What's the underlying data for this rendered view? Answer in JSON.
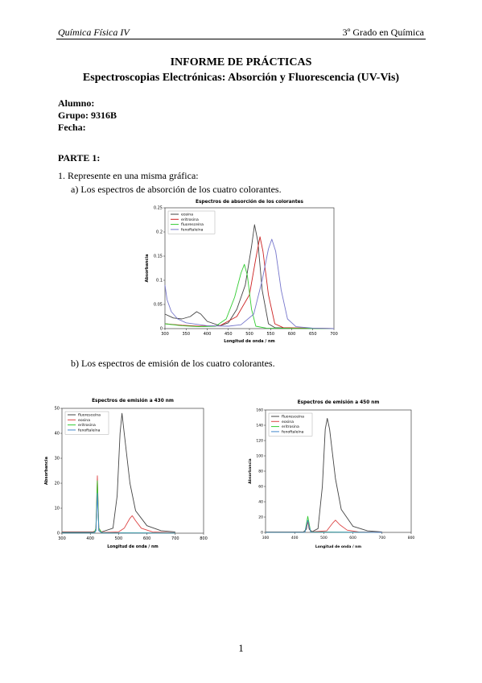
{
  "header": {
    "left": "Química Física IV",
    "right": "3º Grado en Química"
  },
  "title": {
    "line1": "INFORME DE PRÁCTICAS",
    "line2": "Espectroscopias Electrónicas: Absorción y Fluorescencia (UV-Vis)"
  },
  "meta": {
    "alumno": "Alumno:",
    "grupo": "Grupo: 9316B",
    "fecha": "Fecha:"
  },
  "section": "PARTE 1:",
  "q1": "1.  Represente en una misma gráfica:",
  "qa": "a)  Los espectros de absorción de los cuatro colorantes.",
  "qb": "b)  Los espectros de emisión de los cuatro colorantes.",
  "page_number": "1",
  "chart_data": [
    {
      "type": "line",
      "title": "Espectros de absorción de los colorantes",
      "xlabel": "Longitud de onda / nm",
      "ylabel": "Absorbancia",
      "xlim": [
        300,
        700
      ],
      "ylim": [
        0,
        0.25
      ],
      "xticks": [
        300,
        350,
        400,
        450,
        500,
        550,
        600,
        650,
        700
      ],
      "yticks": [
        0,
        0.05,
        0.1,
        0.15,
        0.2,
        0.25
      ],
      "legend": "top-left",
      "series": [
        {
          "name": "eosina",
          "color": "#444444",
          "points": [
            [
              300,
              0.03
            ],
            [
              320,
              0.022
            ],
            [
              340,
              0.02
            ],
            [
              360,
              0.025
            ],
            [
              375,
              0.035
            ],
            [
              385,
              0.03
            ],
            [
              400,
              0.015
            ],
            [
              430,
              0.006
            ],
            [
              450,
              0.012
            ],
            [
              470,
              0.04
            ],
            [
              490,
              0.09
            ],
            [
              505,
              0.17
            ],
            [
              512,
              0.215
            ],
            [
              520,
              0.18
            ],
            [
              530,
              0.08
            ],
            [
              545,
              0.01
            ],
            [
              560,
              0.002
            ],
            [
              600,
              0.001
            ],
            [
              700,
              0.0
            ]
          ]
        },
        {
          "name": "eritrosina",
          "color": "#cc2222",
          "points": [
            [
              300,
              0.01
            ],
            [
              340,
              0.007
            ],
            [
              380,
              0.005
            ],
            [
              430,
              0.006
            ],
            [
              470,
              0.025
            ],
            [
              500,
              0.07
            ],
            [
              515,
              0.145
            ],
            [
              525,
              0.19
            ],
            [
              532,
              0.16
            ],
            [
              545,
              0.07
            ],
            [
              560,
              0.01
            ],
            [
              580,
              0.002
            ],
            [
              700,
              0.0
            ]
          ]
        },
        {
          "name": "fluoresceína",
          "color": "#33cc33",
          "points": [
            [
              300,
              0.01
            ],
            [
              340,
              0.006
            ],
            [
              380,
              0.004
            ],
            [
              420,
              0.005
            ],
            [
              445,
              0.02
            ],
            [
              465,
              0.065
            ],
            [
              480,
              0.115
            ],
            [
              488,
              0.133
            ],
            [
              495,
              0.11
            ],
            [
              505,
              0.04
            ],
            [
              515,
              0.005
            ],
            [
              540,
              0.001
            ],
            [
              700,
              0.0
            ]
          ]
        },
        {
          "name": "fenoftaleína",
          "color": "#7777cc",
          "points": [
            [
              300,
              0.09
            ],
            [
              305,
              0.06
            ],
            [
              315,
              0.035
            ],
            [
              330,
              0.02
            ],
            [
              350,
              0.012
            ],
            [
              400,
              0.006
            ],
            [
              450,
              0.005
            ],
            [
              480,
              0.008
            ],
            [
              510,
              0.03
            ],
            [
              530,
              0.1
            ],
            [
              545,
              0.165
            ],
            [
              553,
              0.185
            ],
            [
              562,
              0.16
            ],
            [
              575,
              0.08
            ],
            [
              590,
              0.02
            ],
            [
              610,
              0.004
            ],
            [
              650,
              0.001
            ],
            [
              700,
              0.0
            ]
          ]
        }
      ]
    },
    {
      "type": "line",
      "title": "Espectros de emisión a 430 nm",
      "xlabel": "Longitud de onda / nm",
      "ylabel": "Absorbancia",
      "xlim": [
        300,
        800
      ],
      "ylim": [
        0,
        50
      ],
      "xticks": [
        300,
        400,
        500,
        600,
        700,
        800
      ],
      "yticks": [
        0,
        10,
        20,
        30,
        40,
        50
      ],
      "legend": "top-left",
      "series": [
        {
          "name": "fluoresceína",
          "color": "#444444",
          "points": [
            [
              300,
              0.5
            ],
            [
              410,
              0.5
            ],
            [
              420,
              1
            ],
            [
              425,
              19
            ],
            [
              430,
              1
            ],
            [
              440,
              0.5
            ],
            [
              480,
              2
            ],
            [
              495,
              15
            ],
            [
              505,
              40
            ],
            [
              512,
              48
            ],
            [
              520,
              40
            ],
            [
              540,
              20
            ],
            [
              560,
              9
            ],
            [
              600,
              3
            ],
            [
              650,
              1
            ],
            [
              700,
              0.5
            ]
          ]
        },
        {
          "name": "eosina",
          "color": "#dd4444",
          "points": [
            [
              300,
              0.3
            ],
            [
              415,
              0.3
            ],
            [
              420,
              2
            ],
            [
              425,
              23
            ],
            [
              430,
              2
            ],
            [
              440,
              0.3
            ],
            [
              500,
              0.5
            ],
            [
              520,
              2
            ],
            [
              540,
              6
            ],
            [
              548,
              7
            ],
            [
              560,
              5
            ],
            [
              580,
              2
            ],
            [
              620,
              0.5
            ],
            [
              700,
              0.2
            ]
          ]
        },
        {
          "name": "eritrosina",
          "color": "#33cc33",
          "points": [
            [
              300,
              0.2
            ],
            [
              415,
              0.2
            ],
            [
              420,
              2
            ],
            [
              425,
              21
            ],
            [
              430,
              2
            ],
            [
              440,
              0.2
            ],
            [
              700,
              0.1
            ]
          ]
        },
        {
          "name": "fenoftaleína",
          "color": "#4488cc",
          "points": [
            [
              300,
              0.1
            ],
            [
              415,
              0.1
            ],
            [
              420,
              1
            ],
            [
              425,
              16
            ],
            [
              430,
              1
            ],
            [
              440,
              0.1
            ],
            [
              700,
              0.05
            ]
          ]
        }
      ]
    },
    {
      "type": "line",
      "title": "Espectros de emisión a 450 nm",
      "xlabel": "Longitud de onda / nm",
      "ylabel": "Absorbancia",
      "xlim": [
        300,
        800
      ],
      "ylim": [
        0,
        160
      ],
      "xticks": [
        300,
        400,
        500,
        600,
        700,
        800
      ],
      "yticks": [
        0,
        20,
        40,
        60,
        80,
        100,
        120,
        140,
        160
      ],
      "legend": "top-left",
      "series": [
        {
          "name": "fluoresceína",
          "color": "#444444",
          "points": [
            [
              300,
              0.5
            ],
            [
              430,
              0.5
            ],
            [
              440,
              4
            ],
            [
              445,
              15
            ],
            [
              450,
              4
            ],
            [
              460,
              1
            ],
            [
              480,
              5
            ],
            [
              495,
              60
            ],
            [
              505,
              135
            ],
            [
              512,
              149
            ],
            [
              520,
              135
            ],
            [
              540,
              70
            ],
            [
              560,
              30
            ],
            [
              600,
              8
            ],
            [
              650,
              2
            ],
            [
              700,
              0.5
            ]
          ]
        },
        {
          "name": "eosina",
          "color": "#dd4444",
          "points": [
            [
              300,
              0.3
            ],
            [
              435,
              0.3
            ],
            [
              445,
              14
            ],
            [
              455,
              0.5
            ],
            [
              510,
              2
            ],
            [
              530,
              12
            ],
            [
              540,
              16
            ],
            [
              555,
              10
            ],
            [
              580,
              3
            ],
            [
              620,
              0.5
            ],
            [
              700,
              0.2
            ]
          ]
        },
        {
          "name": "eritrosina",
          "color": "#33cc33",
          "points": [
            [
              300,
              0.2
            ],
            [
              435,
              0.2
            ],
            [
              445,
              21
            ],
            [
              455,
              0.5
            ],
            [
              700,
              0.1
            ]
          ]
        },
        {
          "name": "fenoftaleína",
          "color": "#4488cc",
          "points": [
            [
              300,
              0.1
            ],
            [
              435,
              0.1
            ],
            [
              445,
              16
            ],
            [
              455,
              0.3
            ],
            [
              700,
              0.05
            ]
          ]
        }
      ]
    }
  ]
}
